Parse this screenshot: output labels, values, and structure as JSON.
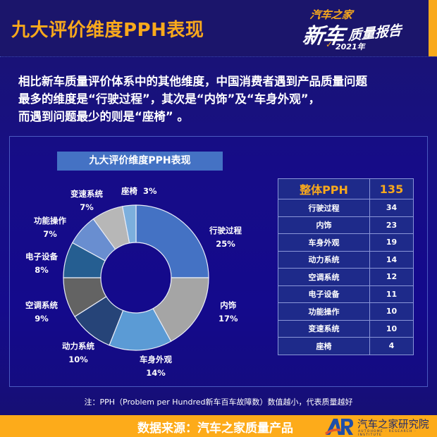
{
  "header": {
    "title": "九大评价维度PPH表现",
    "brand": {
      "top": "汽车之家",
      "main": "新车",
      "sub": "质量报告",
      "year": "2021年"
    }
  },
  "summary": {
    "lines": [
      "相比新车质量评价体系中的其他维度，中国消费者遇到产品质量问题",
      "最多的维度是“行驶过程”，其次是“内饰”及“车身外观”，",
      "而遇到问题最少的则是“座椅” 。"
    ]
  },
  "card": {
    "title": "九大评价维度PPH表现"
  },
  "chart_data": {
    "type": "pie",
    "subtype": "donut",
    "title": "九大评价维度PPH表现",
    "categories": [
      "行驶过程",
      "内饰",
      "车身外观",
      "动力系统",
      "空调系统",
      "电子设备",
      "功能操作",
      "变速系统",
      "座椅"
    ],
    "values": [
      25,
      17,
      14,
      10,
      9,
      8,
      7,
      7,
      3
    ],
    "value_labels": [
      "25%",
      "17%",
      "14%",
      "10%",
      "9%",
      "8%",
      "7%",
      "7%",
      "3%"
    ],
    "colors": [
      "#4472c4",
      "#a5a5a5",
      "#5b9bd5",
      "#264478",
      "#636363",
      "#255e91",
      "#698ed0",
      "#b7b7b7",
      "#7cafdd"
    ],
    "start_angle_deg": 0,
    "direction": "clockwise",
    "legend": "none (data labels outside)",
    "table": {
      "header": [
        "整体PPH",
        "135"
      ],
      "rows": [
        [
          "行驶过程",
          34
        ],
        [
          "内饰",
          23
        ],
        [
          "车身外观",
          19
        ],
        [
          "动力系统",
          14
        ],
        [
          "空调系统",
          12
        ],
        [
          "电子设备",
          11
        ],
        [
          "功能操作",
          10
        ],
        [
          "变速系统",
          10
        ],
        [
          "座椅",
          4
        ]
      ]
    }
  },
  "labels": [
    {
      "name": "行驶过程",
      "pct": "25%"
    },
    {
      "name": "内饰",
      "pct": "17%"
    },
    {
      "name": "车身外观",
      "pct": "14%"
    },
    {
      "name": "动力系统",
      "pct": "10%"
    },
    {
      "name": "空调系统",
      "pct": "9%"
    },
    {
      "name": "电子设备",
      "pct": "8%"
    },
    {
      "name": "功能操作",
      "pct": "7%"
    },
    {
      "name": "变速系统",
      "pct": "7%"
    },
    {
      "name": "座椅",
      "pct": "3%"
    }
  ],
  "table": {
    "header_label": "整体PPH",
    "header_value": "135",
    "rows": [
      {
        "name": "行驶过程",
        "value": "34"
      },
      {
        "name": "内饰",
        "value": "23"
      },
      {
        "name": "车身外观",
        "value": "19"
      },
      {
        "name": "动力系统",
        "value": "14"
      },
      {
        "name": "空调系统",
        "value": "12"
      },
      {
        "name": "电子设备",
        "value": "11"
      },
      {
        "name": "功能操作",
        "value": "10"
      },
      {
        "name": "变速系统",
        "value": "10"
      },
      {
        "name": "座椅",
        "value": "4"
      }
    ]
  },
  "note": "注：PPH（Problem per Hundred新车百车故障数）数值越小，代表质量越好",
  "footer": {
    "source": "数据来源：汽车之家质量产品",
    "institute": "汽车之家研究院",
    "institute_en": "AUTOHOME · RESEARCH · INSTITUTE"
  },
  "colors": {
    "accent": "#f9a91c",
    "background": "#170f86",
    "card_title_bg": "#4472c4",
    "table_bg": "#1e2a8a"
  }
}
